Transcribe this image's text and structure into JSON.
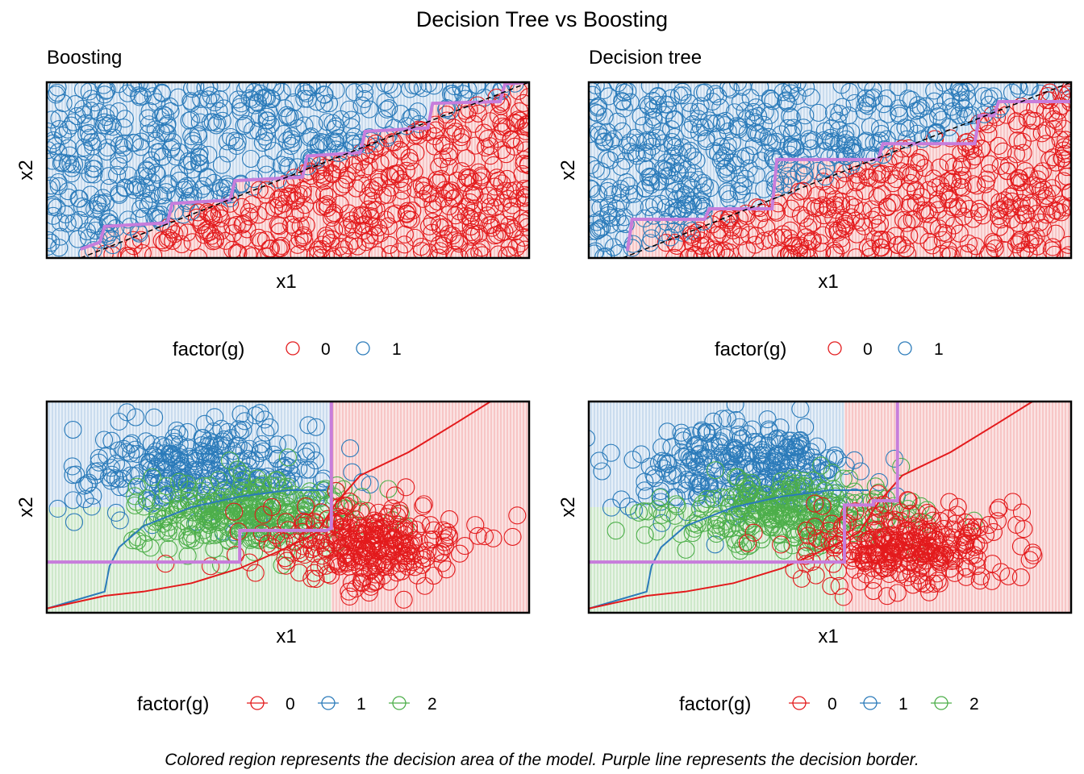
{
  "title": "Decision Tree vs Boosting",
  "caption": "Colored region represents the decision area of the model. Purple line represents the decision border.",
  "colors": {
    "class0": "#e31a1c",
    "class1": "#2b7bba",
    "class2": "#4daf4a",
    "border": "#c77ddb",
    "region0": "#f6c4c4",
    "region1": "#c9dcee",
    "region2": "#cfe8cc",
    "true_boundary": "#000000"
  },
  "chart_data": [
    {
      "type": "scatter",
      "subtitle": "Boosting",
      "xlabel": "x1",
      "ylabel": "x2",
      "xlim": [
        0,
        1
      ],
      "ylim": [
        0,
        1
      ],
      "axis_ticks": false,
      "grid": false,
      "legend": {
        "title": "factor(g)",
        "position": "bottom",
        "keys": [
          "0",
          "1"
        ],
        "key_style": "point"
      },
      "n_points": 900,
      "true_boundary": {
        "style": "dashed",
        "x": [
          0.07,
          1.0
        ],
        "y": [
          0.0,
          1.0
        ]
      },
      "decision_border_steps": {
        "x": [
          0.07,
          0.11,
          0.12,
          0.25,
          0.26,
          0.38,
          0.39,
          0.53,
          0.54,
          0.65,
          0.66,
          0.79,
          0.8,
          0.94,
          0.95,
          1.0
        ],
        "y": [
          0.05,
          0.09,
          0.18,
          0.2,
          0.31,
          0.33,
          0.44,
          0.46,
          0.58,
          0.6,
          0.72,
          0.74,
          0.88,
          0.89,
          0.99,
          1.0
        ]
      }
    },
    {
      "type": "scatter",
      "subtitle": "Decision tree",
      "xlabel": "x1",
      "ylabel": "x2",
      "xlim": [
        0,
        1
      ],
      "ylim": [
        0,
        1
      ],
      "axis_ticks": false,
      "grid": false,
      "legend": {
        "title": "factor(g)",
        "position": "bottom",
        "keys": [
          "0",
          "1"
        ],
        "key_style": "point"
      },
      "n_points": 900,
      "true_boundary": {
        "style": "dashed",
        "x": [
          0.07,
          1.0
        ],
        "y": [
          0.0,
          1.0
        ]
      },
      "decision_border_steps": {
        "x": [
          0.08,
          0.09,
          0.24,
          0.25,
          0.38,
          0.39,
          0.6,
          0.61,
          0.8,
          0.81,
          0.84,
          0.85,
          1.0
        ],
        "y": [
          0.04,
          0.22,
          0.22,
          0.28,
          0.28,
          0.56,
          0.56,
          0.65,
          0.65,
          0.81,
          0.81,
          0.89,
          0.89
        ]
      }
    },
    {
      "type": "scatter",
      "xlabel": "x1",
      "ylabel": "x2",
      "xlim": [
        0,
        1
      ],
      "ylim": [
        0,
        1
      ],
      "axis_ticks": false,
      "grid": false,
      "legend": {
        "title": "factor(g)",
        "position": "bottom",
        "keys": [
          "0",
          "1",
          "2"
        ],
        "key_style": "point-line"
      },
      "clusters": [
        {
          "class": "1",
          "center": [
            0.32,
            0.68
          ],
          "spread": [
            0.12,
            0.11
          ],
          "n": 300
        },
        {
          "class": "2",
          "center": [
            0.42,
            0.47
          ],
          "spread": [
            0.12,
            0.08
          ],
          "n": 300
        },
        {
          "class": "0",
          "center": [
            0.66,
            0.32
          ],
          "spread": [
            0.1,
            0.1
          ],
          "n": 300
        }
      ],
      "true_boundaries": [
        {
          "class": "1",
          "x": [
            0.0,
            0.12,
            0.13,
            0.15,
            0.2,
            0.3,
            0.4,
            0.5,
            0.58
          ],
          "y": [
            0.02,
            0.1,
            0.22,
            0.31,
            0.41,
            0.5,
            0.55,
            0.58,
            0.58
          ]
        },
        {
          "class": "0",
          "x": [
            0.0,
            0.12,
            0.2,
            0.3,
            0.4,
            0.5,
            0.56,
            0.6,
            0.65,
            0.75,
            0.85,
            0.92
          ],
          "y": [
            0.02,
            0.08,
            0.1,
            0.14,
            0.21,
            0.31,
            0.38,
            0.52,
            0.65,
            0.76,
            0.9,
            1.0
          ]
        }
      ],
      "decision_regions": [
        {
          "class": "1",
          "x": [
            0.0,
            0.59
          ],
          "y": [
            0.5,
            1.0
          ]
        },
        {
          "class": "2",
          "x": [
            0.0,
            0.59
          ],
          "y": [
            0.0,
            0.5
          ]
        },
        {
          "class": "0",
          "x": [
            0.59,
            1.0
          ],
          "y": [
            0.0,
            1.0
          ]
        }
      ],
      "decision_border": {
        "x": [
          0.0,
          0.4,
          0.4,
          0.58,
          0.59,
          0.59
        ],
        "y": [
          0.24,
          0.24,
          0.39,
          0.39,
          0.4,
          1.0
        ]
      }
    },
    {
      "type": "scatter",
      "xlabel": "x1",
      "ylabel": "x2",
      "xlim": [
        0,
        1
      ],
      "ylim": [
        0,
        1
      ],
      "axis_ticks": false,
      "grid": false,
      "legend": {
        "title": "factor(g)",
        "position": "bottom",
        "keys": [
          "0",
          "1",
          "2"
        ],
        "key_style": "point-line"
      },
      "clusters": [
        {
          "class": "1",
          "center": [
            0.32,
            0.68
          ],
          "spread": [
            0.12,
            0.11
          ],
          "n": 300
        },
        {
          "class": "2",
          "center": [
            0.42,
            0.47
          ],
          "spread": [
            0.12,
            0.08
          ],
          "n": 300
        },
        {
          "class": "0",
          "center": [
            0.66,
            0.32
          ],
          "spread": [
            0.1,
            0.1
          ],
          "n": 300
        }
      ],
      "true_boundaries": [
        {
          "class": "1",
          "x": [
            0.0,
            0.12,
            0.13,
            0.15,
            0.2,
            0.3,
            0.4,
            0.5,
            0.58
          ],
          "y": [
            0.02,
            0.1,
            0.22,
            0.31,
            0.41,
            0.5,
            0.55,
            0.58,
            0.58
          ]
        },
        {
          "class": "0",
          "x": [
            0.0,
            0.12,
            0.2,
            0.3,
            0.4,
            0.5,
            0.56,
            0.6,
            0.65,
            0.75,
            0.85,
            0.92
          ],
          "y": [
            0.02,
            0.08,
            0.1,
            0.14,
            0.21,
            0.31,
            0.38,
            0.52,
            0.65,
            0.76,
            0.9,
            1.0
          ]
        }
      ],
      "decision_regions": [
        {
          "class": "1",
          "x": [
            0.0,
            0.64
          ],
          "y": [
            0.5,
            1.0
          ]
        },
        {
          "class": "2",
          "x": [
            0.0,
            0.53
          ],
          "y": [
            0.0,
            0.5
          ]
        },
        {
          "class": "0",
          "x": [
            0.53,
            1.0
          ],
          "y": [
            0.0,
            1.0
          ]
        }
      ],
      "decision_border": {
        "x": [
          0.0,
          0.53,
          0.53,
          0.59,
          0.59,
          0.64,
          0.64
        ],
        "y": [
          0.24,
          0.24,
          0.51,
          0.51,
          0.53,
          0.53,
          1.0
        ]
      }
    }
  ]
}
